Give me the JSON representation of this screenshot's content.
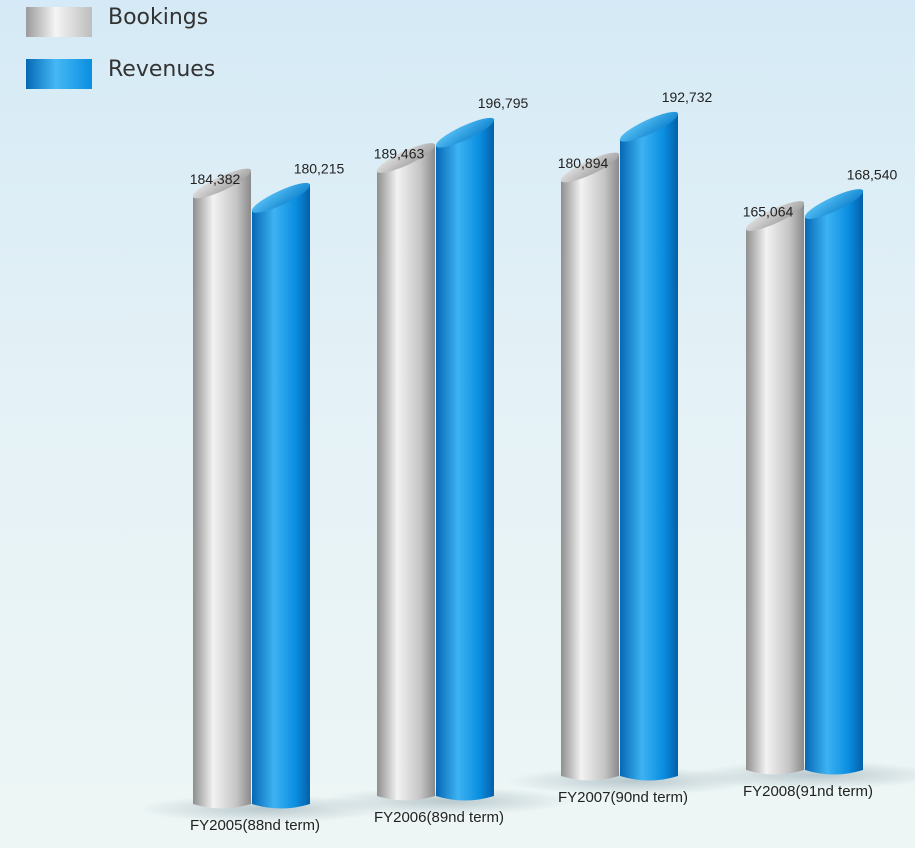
{
  "chart_data": {
    "type": "bar",
    "title": "",
    "xlabel": "",
    "ylabel": "",
    "categories": [
      "FY2005(88nd term)",
      "FY2006(89nd term)",
      "FY2007(90nd term)",
      "FY2008(91nd term)"
    ],
    "series": [
      {
        "name": "Bookings",
        "values": [
          184382,
          189463,
          180894,
          165064
        ],
        "labels": [
          "184,382",
          "189,463",
          "180,894",
          "165,064"
        ],
        "color": "#b8b8b8"
      },
      {
        "name": "Revenues",
        "values": [
          180215,
          196795,
          192732,
          168540
        ],
        "labels": [
          "180,215",
          "196,795",
          "192,732",
          "168,540"
        ],
        "color": "#0a8ee0"
      }
    ],
    "ylim": [
      0,
      200000
    ],
    "grid": false,
    "legend_position": "top-left",
    "style": "3d-cylinders"
  },
  "colors": {
    "bookings_light": "#f4f4f4",
    "bookings_mid": "#c2c2c2",
    "bookings_dark": "#8a8a8a",
    "revenues_light": "#48b8f4",
    "revenues_mid": "#0a8ee0",
    "revenues_dark": "#045fa8",
    "text": "#222222"
  }
}
